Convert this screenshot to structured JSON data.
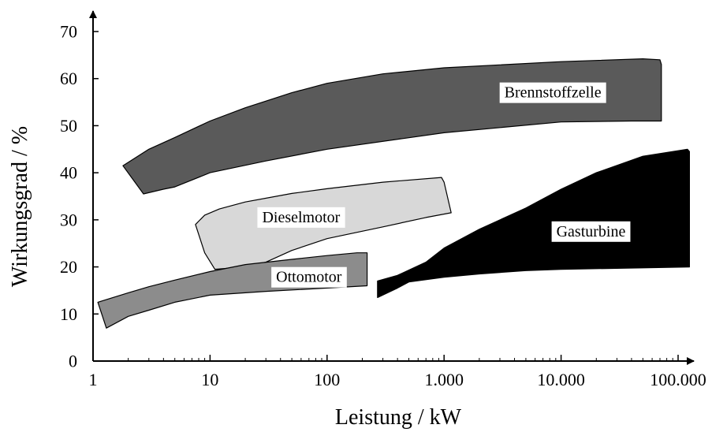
{
  "chart_data": {
    "type": "area",
    "title": "",
    "xlabel": "Leistung / kW",
    "ylabel": "Wirkungsgrad / %",
    "xscale": "log",
    "xlim": [
      1,
      150000
    ],
    "ylim": [
      0,
      70
    ],
    "x_ticks": [
      1,
      10,
      100,
      1000,
      10000,
      100000
    ],
    "x_tick_labels": [
      "1",
      "10",
      "100",
      "1.000",
      "10.000",
      "100.000"
    ],
    "y_ticks": [
      0,
      10,
      20,
      30,
      40,
      50,
      60,
      70
    ],
    "y_tick_labels": [
      "0",
      "10",
      "20",
      "30",
      "40",
      "50",
      "60",
      "70"
    ],
    "grid": false,
    "series": [
      {
        "name": "Brennstoffzelle",
        "color": "#5a5a5a",
        "label_at": [
          8500,
          57
        ],
        "polygon": [
          [
            1.8,
            41.5
          ],
          [
            3,
            45
          ],
          [
            5,
            47.5
          ],
          [
            10,
            51
          ],
          [
            20,
            53.8
          ],
          [
            50,
            57
          ],
          [
            100,
            59
          ],
          [
            300,
            61
          ],
          [
            1000,
            62.3
          ],
          [
            10000,
            63.6
          ],
          [
            50000,
            64.2
          ],
          [
            70000,
            64
          ],
          [
            72000,
            63
          ],
          [
            72000,
            51
          ],
          [
            40000,
            51
          ],
          [
            10000,
            50.8
          ],
          [
            1000,
            48.5
          ],
          [
            100,
            45
          ],
          [
            30,
            42.5
          ],
          [
            10,
            40
          ],
          [
            5,
            37
          ],
          [
            4,
            36.5
          ],
          [
            2.7,
            35.5
          ]
        ]
      },
      {
        "name": "Dieselmotor",
        "color": "#d8d8d8",
        "label_at": [
          60,
          30.5
        ],
        "polygon": [
          [
            7.5,
            29
          ],
          [
            9,
            31
          ],
          [
            12,
            32.3
          ],
          [
            20,
            33.8
          ],
          [
            50,
            35.6
          ],
          [
            100,
            36.6
          ],
          [
            300,
            38
          ],
          [
            950,
            39
          ],
          [
            1000,
            38
          ],
          [
            1150,
            31.5
          ],
          [
            700,
            30.5
          ],
          [
            300,
            28.5
          ],
          [
            100,
            26
          ],
          [
            50,
            23.5
          ],
          [
            30,
            21
          ],
          [
            20,
            20
          ],
          [
            11,
            19.5
          ],
          [
            9,
            23
          ]
        ]
      },
      {
        "name": "Ottomotor",
        "color": "#8c8c8c",
        "label_at": [
          70,
          17.8
        ],
        "polygon": [
          [
            1.1,
            12.5
          ],
          [
            2,
            14.5
          ],
          [
            3,
            15.8
          ],
          [
            5,
            17.2
          ],
          [
            10,
            19
          ],
          [
            20,
            20.5
          ],
          [
            50,
            21.6
          ],
          [
            100,
            22.4
          ],
          [
            180,
            23
          ],
          [
            220,
            23
          ],
          [
            220,
            16
          ],
          [
            100,
            15.5
          ],
          [
            30,
            14.8
          ],
          [
            10,
            14
          ],
          [
            5,
            12.5
          ],
          [
            3,
            10.8
          ],
          [
            2,
            9.5
          ],
          [
            1.3,
            7
          ]
        ]
      },
      {
        "name": "Gasturbine",
        "color": "#000000",
        "label_at": [
          18000,
          27.5
        ],
        "polygon": [
          [
            270,
            17
          ],
          [
            400,
            18.2
          ],
          [
            700,
            21
          ],
          [
            1000,
            24
          ],
          [
            2000,
            28
          ],
          [
            5000,
            32.5
          ],
          [
            10000,
            36.5
          ],
          [
            20000,
            40
          ],
          [
            50000,
            43.5
          ],
          [
            120000,
            45
          ],
          [
            125000,
            44.5
          ],
          [
            125000,
            20
          ],
          [
            50000,
            19.8
          ],
          [
            10000,
            19.5
          ],
          [
            5000,
            19.2
          ],
          [
            2000,
            18.5
          ],
          [
            1000,
            17.8
          ],
          [
            500,
            16.8
          ],
          [
            400,
            15.5
          ],
          [
            270,
            13.5
          ]
        ]
      }
    ]
  }
}
